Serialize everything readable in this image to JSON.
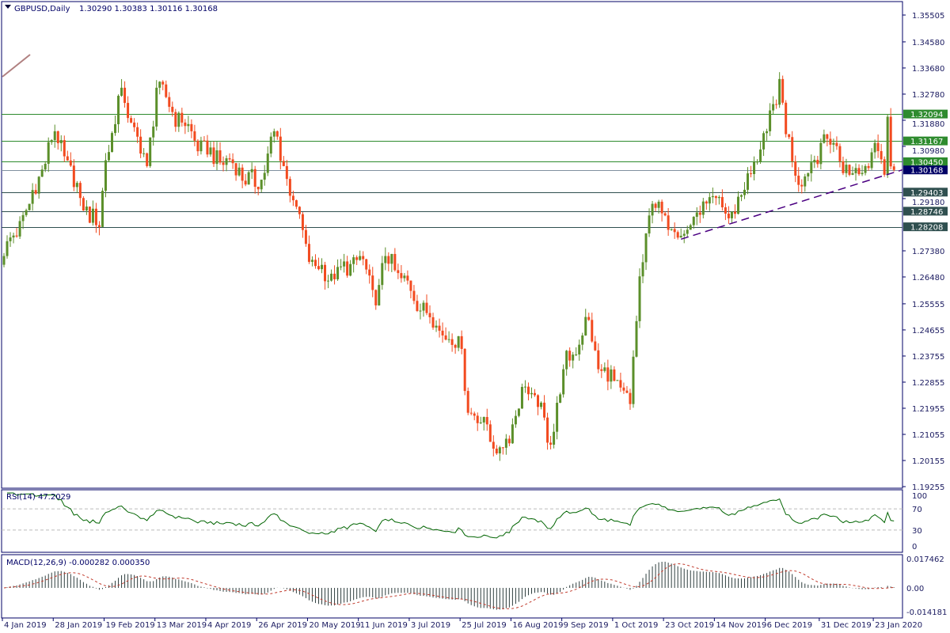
{
  "header": {
    "symbol_label": "GBPUSD,Daily",
    "ohlc_label": "1.30290 1.30383 1.30116 1.30168"
  },
  "chart_data": {
    "type": "candlestick",
    "symbol": "GBPUSD",
    "timeframe": "Daily",
    "last_candle": {
      "open": 1.3029,
      "high": 1.30383,
      "low": 1.30116,
      "close": 1.30168
    },
    "ylim": [
      1.19255,
      1.35505
    ],
    "price_ticks": [
      1.35505,
      1.3458,
      1.3368,
      1.3278,
      1.3188,
      1.3098,
      1.2918,
      1.2738,
      1.2648,
      1.25555,
      1.24655,
      1.23755,
      1.22855,
      1.21955,
      1.21055,
      1.20155,
      1.19255
    ],
    "date_ticks": [
      "4 Jan 2019",
      "28 Jan 2019",
      "19 Feb 2019",
      "13 Mar 2019",
      "4 Apr 2019",
      "26 Apr 2019",
      "20 May 2019",
      "11 Jun 2019",
      "3 Jul 2019",
      "25 Jul 2019",
      "16 Aug 2019",
      "9 Sep 2019",
      "1 Oct 2019",
      "23 Oct 2019",
      "14 Nov 2019",
      "6 Dec 2019",
      "31 Dec 2019",
      "23 Jan 2020"
    ],
    "approx_closes": [
      {
        "date": "4 Jan 2019",
        "close": 1.272
      },
      {
        "date": "16 Jan 2019",
        "close": 1.29
      },
      {
        "date": "28 Jan 2019",
        "close": 1.315
      },
      {
        "date": "7 Feb 2019",
        "close": 1.292
      },
      {
        "date": "15 Feb 2019",
        "close": 1.282
      },
      {
        "date": "19 Feb 2019",
        "close": 1.305
      },
      {
        "date": "26 Feb 2019",
        "close": 1.33
      },
      {
        "date": "1 Mar 2019",
        "close": 1.318
      },
      {
        "date": "8 Mar 2019",
        "close": 1.303
      },
      {
        "date": "13 Mar 2019",
        "close": 1.33
      },
      {
        "date": "25 Mar 2019",
        "close": 1.318
      },
      {
        "date": "4 Apr 2019",
        "close": 1.307
      },
      {
        "date": "16 Apr 2019",
        "close": 1.304
      },
      {
        "date": "26 Apr 2019",
        "close": 1.295
      },
      {
        "date": "3 May 2019",
        "close": 1.315
      },
      {
        "date": "8 May 2019",
        "close": 1.303
      },
      {
        "date": "14 May 2019",
        "close": 1.289
      },
      {
        "date": "20 May 2019",
        "close": 1.27
      },
      {
        "date": "30 May 2019",
        "close": 1.264
      },
      {
        "date": "11 Jun 2019",
        "close": 1.272
      },
      {
        "date": "18 Jun 2019",
        "close": 1.255
      },
      {
        "date": "21 Jun 2019",
        "close": 1.272
      },
      {
        "date": "3 Jul 2019",
        "close": 1.26
      },
      {
        "date": "15 Jul 2019",
        "close": 1.248
      },
      {
        "date": "25 Jul 2019",
        "close": 1.24
      },
      {
        "date": "29 Jul 2019",
        "close": 1.218
      },
      {
        "date": "6 Aug 2019",
        "close": 1.214
      },
      {
        "date": "9 Aug 2019",
        "close": 1.204
      },
      {
        "date": "16 Aug 2019",
        "close": 1.214
      },
      {
        "date": "22 Aug 2019",
        "close": 1.227
      },
      {
        "date": "28 Aug 2019",
        "close": 1.22
      },
      {
        "date": "3 Sep 2019",
        "close": 1.207
      },
      {
        "date": "9 Sep 2019",
        "close": 1.233
      },
      {
        "date": "19 Sep 2019",
        "close": 1.25
      },
      {
        "date": "24 Sep 2019",
        "close": 1.233
      },
      {
        "date": "1 Oct 2019",
        "close": 1.229
      },
      {
        "date": "8 Oct 2019",
        "close": 1.221
      },
      {
        "date": "11 Oct 2019",
        "close": 1.265
      },
      {
        "date": "17 Oct 2019",
        "close": 1.29
      },
      {
        "date": "23 Oct 2019",
        "close": 1.286
      },
      {
        "date": "30 Oct 2019",
        "close": 1.279
      },
      {
        "date": "6 Nov 2019",
        "close": 1.287
      },
      {
        "date": "14 Nov 2019",
        "close": 1.292
      },
      {
        "date": "20 Nov 2019",
        "close": 1.285
      },
      {
        "date": "26 Nov 2019",
        "close": 1.293
      },
      {
        "date": "6 Dec 2019",
        "close": 1.315
      },
      {
        "date": "12 Dec 2019",
        "close": 1.333
      },
      {
        "date": "16 Dec 2019",
        "close": 1.314
      },
      {
        "date": "23 Dec 2019",
        "close": 1.296
      },
      {
        "date": "31 Dec 2019",
        "close": 1.311
      },
      {
        "date": "6 Jan 2020",
        "close": 1.311
      },
      {
        "date": "13 Jan 2020",
        "close": 1.3
      },
      {
        "date": "20 Jan 2020",
        "close": 1.303
      },
      {
        "date": "23 Jan 2020",
        "close": 1.311
      },
      {
        "date": "28 Jan 2020",
        "close": 1.3
      },
      {
        "date": "29 Jan 2020",
        "close": 1.32
      },
      {
        "date": "30 Jan 2020",
        "close": 1.3029
      },
      {
        "date": "31 Jan 2020",
        "close": 1.30168
      }
    ],
    "horizontal_levels": [
      {
        "price": 1.32094,
        "label": "1.32094",
        "color": "#2e8b2e"
      },
      {
        "price": 1.31167,
        "label": "1.31167",
        "color": "#2e8b2e"
      },
      {
        "price": 1.3045,
        "label": "1.30450",
        "color": "#2e8b2e"
      },
      {
        "price": 1.29403,
        "label": "1.29403",
        "color": "#2f4f4f"
      },
      {
        "price": 1.28746,
        "label": "1.28746",
        "color": "#2f4f4f"
      },
      {
        "price": 1.28208,
        "label": "1.28208",
        "color": "#2f4f4f"
      }
    ],
    "current_price": {
      "price": 1.30168,
      "label": "1.30168",
      "color": "#000066"
    },
    "trendline": {
      "style": "dashed",
      "color": "#4b0082",
      "points": [
        {
          "date": "30 Oct 2019",
          "price": 1.2778
        },
        {
          "date": "31 Jan 2020",
          "price": 1.3008
        }
      ]
    },
    "colors": {
      "bull": "#5b8f2a",
      "bear": "#f24a1f",
      "rsi": "#006400",
      "macd_hist": "#2f3f3f",
      "macd_signal": "#c0392b",
      "frame": "#000066"
    },
    "rsi": {
      "label": "RSI(14) 47.2029",
      "period": 14,
      "value": 47.2029,
      "levels": [
        70,
        30
      ],
      "ticks": [
        "100",
        "70",
        "30",
        "0"
      ],
      "ylim": [
        0,
        100
      ]
    },
    "macd": {
      "label": "MACD(12,26,9) -0.000282 0.000350",
      "fast": 12,
      "slow": 26,
      "signal": 9,
      "main": -0.000282,
      "signal_value": 0.00035,
      "ticks": [
        "0.017462",
        "0.00",
        "-0.014181"
      ],
      "ylim": [
        -0.014181,
        0.017462
      ]
    }
  }
}
